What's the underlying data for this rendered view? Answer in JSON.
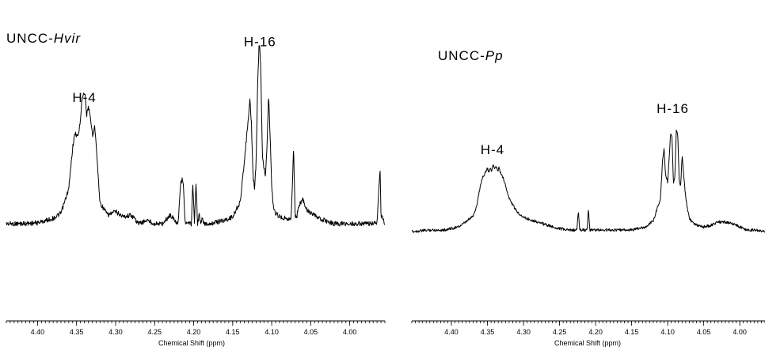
{
  "chart_data": [
    {
      "type": "line",
      "title": "UNCC-Hvir",
      "title_parts": [
        {
          "text": "UNCC-",
          "italic": false
        },
        {
          "text": "Hvir",
          "italic": true
        }
      ],
      "xlabel": "Chemical Shift (ppm)",
      "ylabel": "",
      "x_reversed": true,
      "xlim": [
        4.44,
        3.955
      ],
      "x_ticks": [
        "4.40",
        "4.35",
        "4.30",
        "4.25",
        "4.20",
        "4.15",
        "4.10",
        "4.05",
        "4.00"
      ],
      "grid": false,
      "annotations": [
        {
          "text": "H-4",
          "x": 4.34,
          "y": 0.7
        },
        {
          "text": "H-16",
          "x": 4.115,
          "y": 1.02
        }
      ],
      "series": [
        {
          "x": [
            4.44,
            4.42,
            4.4,
            4.38,
            4.37,
            4.36,
            4.355,
            4.352,
            4.348,
            4.345,
            4.343,
            4.341,
            4.339,
            4.337,
            4.335,
            4.333,
            4.331,
            4.329,
            4.327,
            4.325,
            4.322,
            4.32,
            4.31,
            4.3,
            4.29,
            4.28,
            4.27,
            4.26,
            4.25,
            4.24,
            4.23,
            4.22,
            4.217,
            4.215,
            4.213,
            4.211,
            4.209,
            4.207,
            4.205,
            4.203,
            4.201,
            4.199,
            4.197,
            4.195,
            4.193,
            4.191,
            4.189,
            4.187,
            4.18,
            4.17,
            4.16,
            4.15,
            4.14,
            4.13,
            4.128,
            4.126,
            4.124,
            4.122,
            4.12,
            4.118,
            4.116,
            4.114,
            4.112,
            4.11,
            4.108,
            4.106,
            4.104,
            4.102,
            4.1,
            4.098,
            4.095,
            4.09,
            4.08,
            4.075,
            4.072,
            4.07,
            4.068,
            4.066,
            4.06,
            4.055,
            4.05,
            4.04,
            4.02,
            4.0,
            3.98,
            3.965,
            3.962,
            3.961,
            3.96,
            3.955
          ],
          "values": [
            0.0,
            0.0,
            0.005,
            0.03,
            0.06,
            0.2,
            0.44,
            0.52,
            0.5,
            0.6,
            0.72,
            0.76,
            0.74,
            0.62,
            0.68,
            0.62,
            0.56,
            0.5,
            0.58,
            0.46,
            0.25,
            0.12,
            0.05,
            0.07,
            0.04,
            0.05,
            0.0,
            0.02,
            0.0,
            0.0,
            0.05,
            0.0,
            0.22,
            0.26,
            0.22,
            0.0,
            0.0,
            0.0,
            0.0,
            0.0,
            0.23,
            0.0,
            0.24,
            0.0,
            0.05,
            0.0,
            0.03,
            0.0,
            0.0,
            0.01,
            0.02,
            0.04,
            0.13,
            0.6,
            0.71,
            0.58,
            0.28,
            0.2,
            0.35,
            0.8,
            1.05,
            0.9,
            0.4,
            0.32,
            0.28,
            0.45,
            0.74,
            0.5,
            0.22,
            0.1,
            0.06,
            0.04,
            0.03,
            0.03,
            0.44,
            0.05,
            0.03,
            0.1,
            0.14,
            0.08,
            0.06,
            0.03,
            0.0,
            0.0,
            0.0,
            0.0,
            0.26,
            0.3,
            0.05,
            0.0
          ]
        }
      ]
    },
    {
      "type": "line",
      "title": "UNCC-Pp",
      "title_parts": [
        {
          "text": "UNCC-",
          "italic": false
        },
        {
          "text": "Pp",
          "italic": true
        }
      ],
      "xlabel": "Chemical Shift (ppm)",
      "ylabel": "",
      "x_reversed": true,
      "xlim": [
        4.455,
        3.965
      ],
      "x_ticks": [
        "4.40",
        "4.35",
        "4.30",
        "4.25",
        "4.20",
        "4.15",
        "4.10",
        "4.05",
        "4.00"
      ],
      "grid": false,
      "annotations": [
        {
          "text": "H-4",
          "x": 4.343,
          "y": 0.48
        },
        {
          "text": "H-16",
          "x": 4.093,
          "y": 0.74
        }
      ],
      "series": [
        {
          "x": [
            4.455,
            4.43,
            4.41,
            4.39,
            4.38,
            4.37,
            4.365,
            4.36,
            4.357,
            4.355,
            4.352,
            4.35,
            4.348,
            4.346,
            4.344,
            4.342,
            4.34,
            4.338,
            4.336,
            4.334,
            4.332,
            4.33,
            4.328,
            4.325,
            4.32,
            4.31,
            4.3,
            4.28,
            4.26,
            4.24,
            4.226,
            4.224,
            4.222,
            4.212,
            4.21,
            4.208,
            4.19,
            4.17,
            4.15,
            4.13,
            4.12,
            4.11,
            4.107,
            4.105,
            4.103,
            4.1,
            4.098,
            4.096,
            4.094,
            4.092,
            4.09,
            4.088,
            4.086,
            4.084,
            4.082,
            4.08,
            4.075,
            4.07,
            4.06,
            4.05,
            4.04,
            4.03,
            4.02,
            4.01,
            4.0,
            3.99,
            3.98,
            3.965
          ],
          "values": [
            -0.01,
            0.0,
            0.0,
            0.02,
            0.05,
            0.09,
            0.15,
            0.28,
            0.33,
            0.35,
            0.37,
            0.39,
            0.36,
            0.4,
            0.37,
            0.42,
            0.38,
            0.41,
            0.37,
            0.4,
            0.36,
            0.35,
            0.33,
            0.28,
            0.2,
            0.12,
            0.08,
            0.05,
            0.02,
            0.0,
            0.0,
            0.12,
            0.0,
            0.0,
            0.13,
            0.0,
            0.0,
            0.0,
            0.0,
            0.02,
            0.06,
            0.2,
            0.45,
            0.52,
            0.35,
            0.3,
            0.45,
            0.62,
            0.58,
            0.3,
            0.34,
            0.64,
            0.6,
            0.3,
            0.28,
            0.47,
            0.2,
            0.07,
            0.03,
            0.02,
            0.03,
            0.05,
            0.05,
            0.04,
            0.02,
            0.0,
            0.0,
            -0.01
          ]
        }
      ]
    }
  ]
}
